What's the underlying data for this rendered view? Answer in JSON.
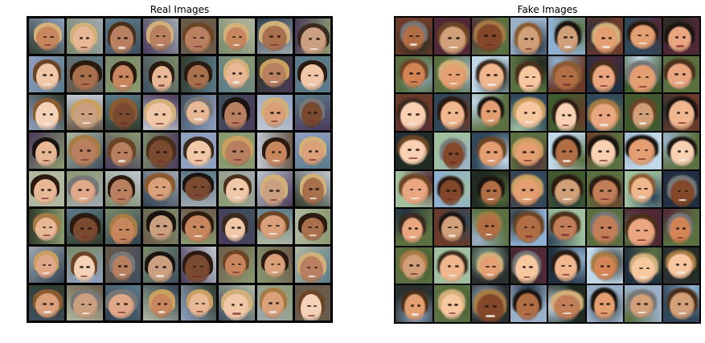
{
  "panels": [
    {
      "title": "Real Images",
      "kind": "real"
    },
    {
      "title": "Fake Images",
      "kind": "fake"
    }
  ]
}
